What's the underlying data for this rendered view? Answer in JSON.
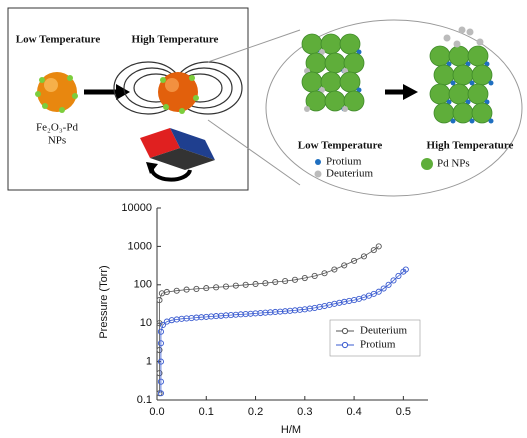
{
  "diagram": {
    "left_panel": {
      "low_label": "Low Temperature",
      "high_label": "High Temperature",
      "particle_label": [
        "Fe₂O₃-Pd",
        "NPs"
      ]
    },
    "right_panel": {
      "low_label": "Low Temperature",
      "high_label": "High Temperature",
      "legend": [
        "Protium",
        "Deuterium",
        "Pd NPs"
      ]
    }
  },
  "chart_data": {
    "type": "scatter",
    "xlabel": "H/M",
    "ylabel": "Pressure (Torr)",
    "xlim": [
      0,
      0.55
    ],
    "xticks": [
      {
        "value": 0,
        "label": "0.0"
      },
      0.1,
      0.2,
      0.3,
      0.4,
      0.5
    ],
    "ylim": [
      0.1,
      10000
    ],
    "yticks": [
      0.1,
      1,
      10,
      100,
      1000,
      10000
    ],
    "ylog": true,
    "legend": "right",
    "series": [
      {
        "name": "Deuterium",
        "color": "#555555",
        "x": [
          0.005,
          0.005,
          0.005,
          0.005,
          0.005,
          0.01,
          0.02,
          0.04,
          0.06,
          0.08,
          0.1,
          0.12,
          0.14,
          0.16,
          0.18,
          0.2,
          0.22,
          0.24,
          0.26,
          0.28,
          0.3,
          0.32,
          0.34,
          0.36,
          0.38,
          0.4,
          0.42,
          0.44,
          0.45
        ],
        "values": [
          0.15,
          0.5,
          2,
          10,
          40,
          60,
          65,
          70,
          75,
          78,
          82,
          86,
          90,
          95,
          100,
          105,
          110,
          118,
          125,
          135,
          150,
          170,
          200,
          250,
          320,
          420,
          550,
          800,
          1000
        ]
      },
      {
        "name": "Protium",
        "color": "#3a5bd0",
        "x": [
          0.008,
          0.008,
          0.008,
          0.008,
          0.008,
          0.012,
          0.02,
          0.03,
          0.04,
          0.05,
          0.06,
          0.07,
          0.08,
          0.09,
          0.1,
          0.11,
          0.12,
          0.13,
          0.14,
          0.15,
          0.16,
          0.17,
          0.18,
          0.19,
          0.2,
          0.21,
          0.22,
          0.23,
          0.24,
          0.25,
          0.26,
          0.27,
          0.28,
          0.29,
          0.3,
          0.31,
          0.32,
          0.33,
          0.34,
          0.35,
          0.36,
          0.37,
          0.38,
          0.39,
          0.4,
          0.41,
          0.42,
          0.43,
          0.44,
          0.45,
          0.46,
          0.47,
          0.48,
          0.49,
          0.5,
          0.505
        ],
        "values": [
          0.15,
          0.3,
          1,
          3,
          6,
          9,
          11,
          12,
          12.5,
          13,
          13.3,
          13.6,
          14,
          14.3,
          14.6,
          15,
          15.3,
          15.6,
          16,
          16.3,
          16.6,
          17,
          17.3,
          17.6,
          18,
          18.4,
          18.8,
          19.2,
          19.6,
          20,
          20.5,
          21,
          21.6,
          22.3,
          23,
          24,
          25,
          26.5,
          28,
          30,
          32,
          34,
          36,
          38,
          40,
          43,
          47,
          52,
          58,
          66,
          80,
          100,
          130,
          170,
          220,
          250
        ]
      }
    ]
  }
}
